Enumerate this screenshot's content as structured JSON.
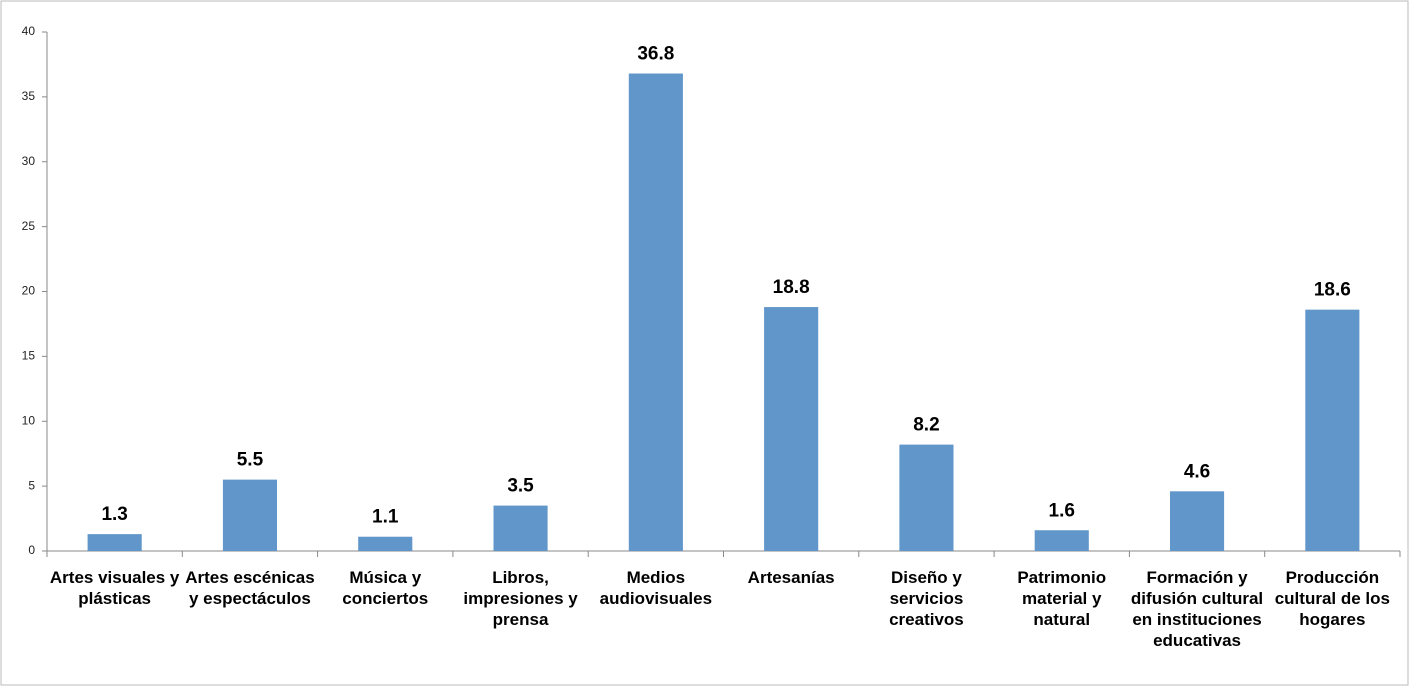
{
  "chart_data": {
    "type": "bar",
    "categories": [
      "Artes visuales y plásticas",
      "Artes escénicas y espectáculos",
      "Música y conciertos",
      "Libros, impresiones y prensa",
      "Medios audiovisuales",
      "Artesanías",
      "Diseño y servicios creativos",
      "Patrimonio material y natural",
      "Formación y difusión cultural en instituciones educativas",
      "Producción cultural de los hogares"
    ],
    "values": [
      1.3,
      5.5,
      1.1,
      3.5,
      36.8,
      18.8,
      8.2,
      1.6,
      4.6,
      18.6
    ],
    "color": "#6096c9",
    "ylim": [
      0,
      40
    ],
    "yticks": [
      0,
      5,
      10,
      15,
      20,
      25,
      30,
      35,
      40
    ],
    "grid": false
  }
}
